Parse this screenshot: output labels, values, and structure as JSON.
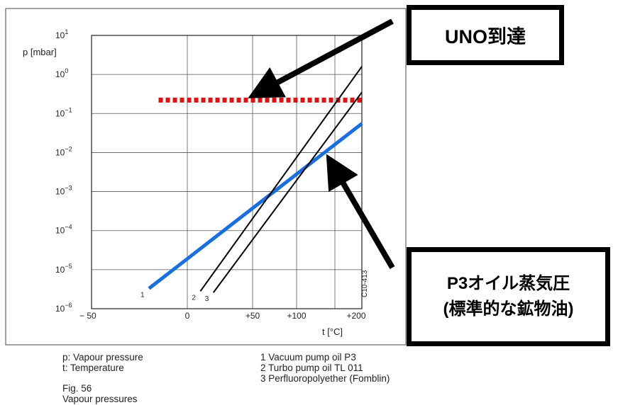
{
  "chart_data": {
    "type": "line",
    "ylabel": "p [mbar]",
    "xlabel": "t [°C]",
    "yscale": "log",
    "xlim": [
      -50,
      200
    ],
    "ylim": [
      1e-06,
      10
    ],
    "x_ticks": [
      "− 50",
      "0",
      "+50",
      "+100",
      "+200"
    ],
    "y_ticks": [
      {
        "base": "10",
        "exp": "1"
      },
      {
        "base": "10",
        "exp": "0"
      },
      {
        "base": "10",
        "exp": "−1"
      },
      {
        "base": "10",
        "exp": "−2"
      },
      {
        "base": "10",
        "exp": "−3"
      },
      {
        "base": "10",
        "exp": "−4"
      },
      {
        "base": "10",
        "exp": "−5"
      },
      {
        "base": "10",
        "exp": "−6"
      }
    ],
    "grid": true,
    "series": [
      {
        "label": "1",
        "color": "#1a6fe0",
        "x": [
          -20,
          200
        ],
        "y": [
          3.3e-06,
          0.055
        ]
      },
      {
        "label": "2",
        "color": "#000000",
        "x": [
          10,
          200
        ],
        "y": [
          2.8e-06,
          1.6
        ]
      },
      {
        "label": "3",
        "color": "#000000",
        "x": [
          20,
          200
        ],
        "y": [
          2.6e-06,
          0.35
        ]
      }
    ],
    "reference_line": {
      "y": 0.22,
      "x": [
        -15,
        200
      ],
      "color": "#e01010",
      "style": "dotted"
    },
    "figure_code": "C10-413"
  },
  "callouts": {
    "uno": "UNO到達",
    "p3_line1": "P3オイル蒸気圧",
    "p3_line2": "(標準的な鉱物油)"
  },
  "caption": {
    "p_def": "p: Vapour pressure",
    "t_def": "t:  Temperature",
    "legend": [
      "1 Vacuum pump oil P3",
      "2 Turbo pump oil TL 011",
      "3 Perfluoropolyether (Fomblin)"
    ],
    "fig_number": "Fig. 56",
    "fig_title": "Vapour pressures"
  }
}
